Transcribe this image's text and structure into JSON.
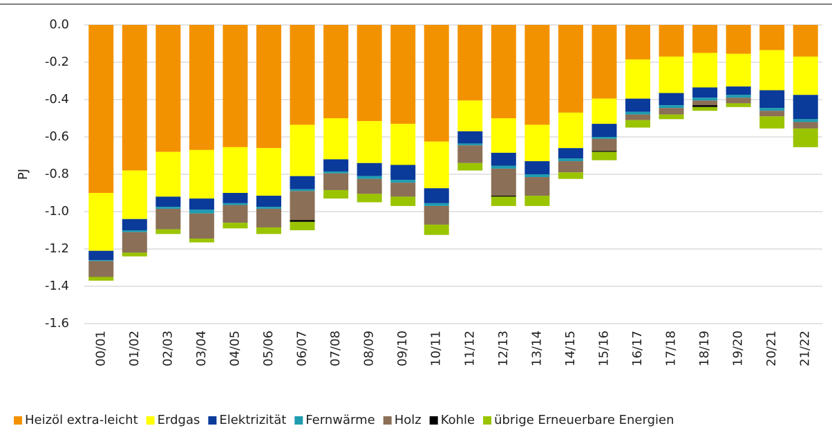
{
  "chart_data": {
    "type": "stacked_bar",
    "y_label": "PJ",
    "categories": [
      "00/01",
      "01/02",
      "02/03",
      "03/04",
      "04/05",
      "05/06",
      "06/07",
      "07/08",
      "08/09",
      "09/10",
      "10/11",
      "11/12",
      "12/13",
      "13/14",
      "14/15",
      "15/16",
      "16/17",
      "17/18",
      "18/19",
      "19/20",
      "20/21",
      "21/22"
    ],
    "series": [
      {
        "name": "Heizöl extra-leicht",
        "color": "#f39200",
        "values": [
          -0.9,
          -0.78,
          -0.68,
          -0.67,
          -0.655,
          -0.66,
          -0.535,
          -0.5,
          -0.515,
          -0.53,
          -0.625,
          -0.405,
          -0.5,
          -0.535,
          -0.47,
          -0.395,
          -0.185,
          -0.17,
          -0.15,
          -0.155,
          -0.135,
          -0.17
        ]
      },
      {
        "name": "Erdgas",
        "color": "#ffff00",
        "values": [
          -0.31,
          -0.26,
          -0.24,
          -0.26,
          -0.245,
          -0.255,
          -0.275,
          -0.22,
          -0.225,
          -0.22,
          -0.25,
          -0.165,
          -0.185,
          -0.195,
          -0.19,
          -0.135,
          -0.21,
          -0.195,
          -0.185,
          -0.175,
          -0.215,
          -0.205
        ]
      },
      {
        "name": "Elektrizität",
        "color": "#0a3a9a",
        "values": [
          -0.05,
          -0.06,
          -0.055,
          -0.06,
          -0.055,
          -0.06,
          -0.07,
          -0.065,
          -0.07,
          -0.08,
          -0.08,
          -0.065,
          -0.07,
          -0.07,
          -0.055,
          -0.07,
          -0.07,
          -0.065,
          -0.055,
          -0.045,
          -0.095,
          -0.13
        ]
      },
      {
        "name": "Fernwärme",
        "color": "#1f9cb0",
        "values": [
          -0.005,
          -0.01,
          -0.01,
          -0.02,
          -0.01,
          -0.01,
          -0.01,
          -0.01,
          -0.015,
          -0.015,
          -0.015,
          -0.01,
          -0.015,
          -0.015,
          -0.015,
          -0.01,
          -0.015,
          -0.015,
          -0.015,
          -0.015,
          -0.015,
          -0.015
        ]
      },
      {
        "name": "Holz",
        "color": "#8b6f56",
        "values": [
          -0.085,
          -0.11,
          -0.11,
          -0.135,
          -0.095,
          -0.1,
          -0.155,
          -0.09,
          -0.08,
          -0.075,
          -0.1,
          -0.095,
          -0.145,
          -0.1,
          -0.06,
          -0.065,
          -0.03,
          -0.035,
          -0.025,
          -0.03,
          -0.03,
          -0.035
        ]
      },
      {
        "name": "Kohle",
        "color": "#000000",
        "values": [
          0,
          0,
          0,
          0,
          0,
          0,
          -0.01,
          0,
          0,
          0,
          0,
          0,
          -0.005,
          0,
          0,
          -0.005,
          0,
          0,
          -0.01,
          0,
          0,
          0
        ]
      },
      {
        "name": "übrige Erneuerbare Energien",
        "color": "#9bc400",
        "values": [
          -0.02,
          -0.02,
          -0.025,
          -0.02,
          -0.03,
          -0.035,
          -0.045,
          -0.045,
          -0.045,
          -0.05,
          -0.055,
          -0.04,
          -0.05,
          -0.055,
          -0.035,
          -0.045,
          -0.04,
          -0.025,
          -0.02,
          -0.02,
          -0.065,
          -0.1
        ]
      }
    ],
    "ylim": [
      -1.6,
      0
    ],
    "yticks": [
      {
        "value": 0,
        "label": "0.0"
      },
      -0.2,
      -0.4,
      -0.6,
      -0.8,
      {
        "value": -1,
        "label": "-1.0"
      },
      -1.2,
      -1.4,
      -1.6
    ],
    "grid": true
  }
}
